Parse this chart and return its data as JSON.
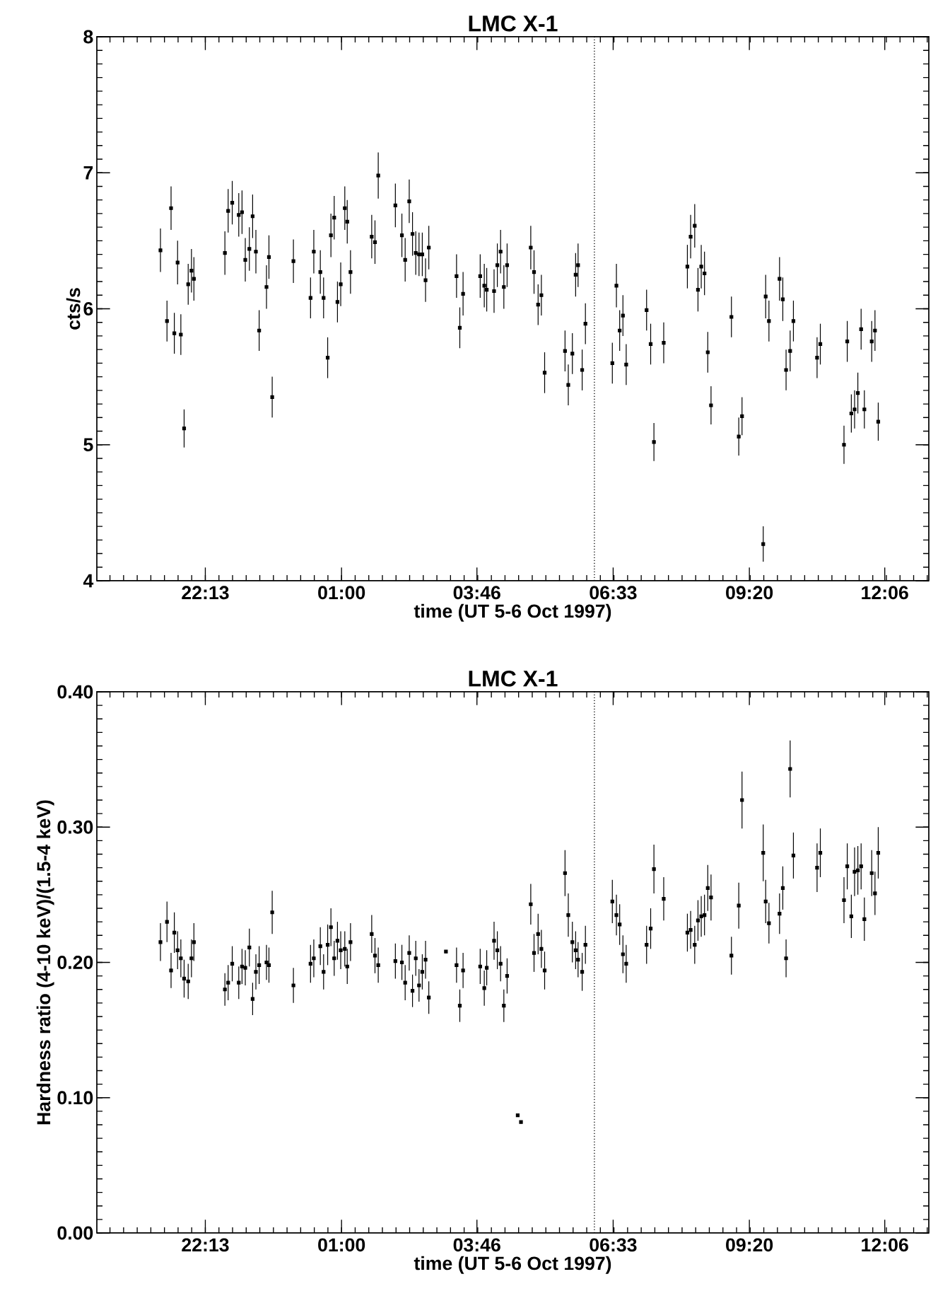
{
  "chart_data": [
    {
      "type": "scatter",
      "title": "LMC X-1",
      "xlabel": "time (UT 5-6 Oct 1997)",
      "ylabel": "cts/s",
      "color": "#000000",
      "marker": "square",
      "xlim": [
        "1997-10-05T20:00",
        "1997-10-06T13:00"
      ],
      "ylim": [
        4,
        8
      ],
      "xticks": [
        {
          "value": "1997-10-05T22:13",
          "label": "22:13"
        },
        {
          "value": "1997-10-06T01:00",
          "label": "01:00"
        },
        {
          "value": "1997-10-06T03:46",
          "label": "03:46"
        },
        {
          "value": "1997-10-06T06:33",
          "label": "06:33"
        },
        {
          "value": "1997-10-06T09:20",
          "label": "09:20"
        },
        {
          "value": "1997-10-06T12:06",
          "label": "12:06"
        }
      ],
      "yticks": [
        4,
        5,
        6,
        7,
        8
      ],
      "ref_lines": [
        {
          "axis": "x",
          "value": "1997-10-06T06:10",
          "line_style": "dotted"
        }
      ],
      "x": [
        "1997-10-05T21:18",
        "1997-10-05T21:26",
        "1997-10-05T21:31",
        "1997-10-05T21:35",
        "1997-10-05T21:39",
        "1997-10-05T21:43",
        "1997-10-05T21:47",
        "1997-10-05T21:52",
        "1997-10-05T21:56",
        "1997-10-05T21:59",
        "1997-10-05T22:37",
        "1997-10-05T22:41",
        "1997-10-05T22:46",
        "1997-10-05T22:54",
        "1997-10-05T22:58",
        "1997-10-05T23:02",
        "1997-10-05T23:07",
        "1997-10-05T23:11",
        "1997-10-05T23:15",
        "1997-10-05T23:19",
        "1997-10-05T23:28",
        "1997-10-05T23:31",
        "1997-10-05T23:35",
        "1997-10-06T00:01",
        "1997-10-06T00:22",
        "1997-10-06T00:26",
        "1997-10-06T00:34",
        "1997-10-06T00:38",
        "1997-10-06T00:43",
        "1997-10-06T00:47",
        "1997-10-06T00:51",
        "1997-10-06T00:55",
        "1997-10-06T00:59",
        "1997-10-06T01:04",
        "1997-10-06T01:07",
        "1997-10-06T01:11",
        "1997-10-06T01:37",
        "1997-10-06T01:41",
        "1997-10-06T01:45",
        "1997-10-06T02:06",
        "1997-10-06T02:14",
        "1997-10-06T02:18",
        "1997-10-06T02:23",
        "1997-10-06T02:27",
        "1997-10-06T02:31",
        "1997-10-06T02:35",
        "1997-10-06T02:39",
        "1997-10-06T02:43",
        "1997-10-06T02:47",
        "1997-10-06T03:21",
        "1997-10-06T03:25",
        "1997-10-06T03:29",
        "1997-10-06T03:50",
        "1997-10-06T03:55",
        "1997-10-06T03:58",
        "1997-10-06T04:07",
        "1997-10-06T04:11",
        "1997-10-06T04:15",
        "1997-10-06T04:19",
        "1997-10-06T04:23",
        "1997-10-06T04:52",
        "1997-10-06T04:56",
        "1997-10-06T05:01",
        "1997-10-06T05:05",
        "1997-10-06T05:09",
        "1997-10-06T05:34",
        "1997-10-06T05:38",
        "1997-10-06T05:43",
        "1997-10-06T05:47",
        "1997-10-06T05:50",
        "1997-10-06T05:55",
        "1997-10-06T05:59",
        "1997-10-06T06:32",
        "1997-10-06T06:37",
        "1997-10-06T06:41",
        "1997-10-06T06:45",
        "1997-10-06T06:49",
        "1997-10-06T07:14",
        "1997-10-06T07:19",
        "1997-10-06T07:23",
        "1997-10-06T07:35",
        "1997-10-06T08:04",
        "1997-10-06T08:08",
        "1997-10-06T08:13",
        "1997-10-06T08:17",
        "1997-10-06T08:21",
        "1997-10-06T08:25",
        "1997-10-06T08:29",
        "1997-10-06T08:33",
        "1997-10-06T08:58",
        "1997-10-06T09:07",
        "1997-10-06T09:11",
        "1997-10-06T09:37",
        "1997-10-06T09:40",
        "1997-10-06T09:44",
        "1997-10-06T09:57",
        "1997-10-06T10:01",
        "1997-10-06T10:05",
        "1997-10-06T10:10",
        "1997-10-06T10:14",
        "1997-10-06T10:43",
        "1997-10-06T10:47",
        "1997-10-06T11:16",
        "1997-10-06T11:20",
        "1997-10-06T11:25",
        "1997-10-06T11:29",
        "1997-10-06T11:33",
        "1997-10-06T11:37",
        "1997-10-06T11:41",
        "1997-10-06T11:50",
        "1997-10-06T11:54",
        "1997-10-06T11:58"
      ],
      "values": [
        6.43,
        5.91,
        6.74,
        5.82,
        6.34,
        5.81,
        5.12,
        6.18,
        6.28,
        6.22,
        6.41,
        6.72,
        6.78,
        6.69,
        6.71,
        6.36,
        6.44,
        6.68,
        6.42,
        5.84,
        6.16,
        6.38,
        5.35,
        6.35,
        6.08,
        6.42,
        6.27,
        6.08,
        5.64,
        6.54,
        6.67,
        6.05,
        6.18,
        6.74,
        6.64,
        6.27,
        6.53,
        6.49,
        6.98,
        6.76,
        6.54,
        6.36,
        6.79,
        6.55,
        6.41,
        6.4,
        6.4,
        6.21,
        6.45,
        6.24,
        5.86,
        6.11,
        6.24,
        6.17,
        6.14,
        6.13,
        6.32,
        6.42,
        6.16,
        6.32,
        6.45,
        6.27,
        6.03,
        6.1,
        5.53,
        5.69,
        5.44,
        5.67,
        6.25,
        6.32,
        5.55,
        5.89,
        5.6,
        6.17,
        5.84,
        5.95,
        5.59,
        5.99,
        5.74,
        5.02,
        5.75,
        6.31,
        6.53,
        6.61,
        6.14,
        6.31,
        6.26,
        5.68,
        5.29,
        5.94,
        5.06,
        5.21,
        4.27,
        6.09,
        5.91,
        6.22,
        6.07,
        5.55,
        5.69,
        5.91,
        5.64,
        5.74,
        5.0,
        5.76,
        5.23,
        5.26,
        5.38,
        5.85,
        5.26,
        5.76,
        5.84,
        5.17
      ],
      "errors": [
        0.16,
        0.15,
        0.16,
        0.15,
        0.16,
        0.15,
        0.14,
        0.15,
        0.16,
        0.16,
        0.16,
        0.16,
        0.16,
        0.16,
        0.16,
        0.16,
        0.16,
        0.16,
        0.16,
        0.15,
        0.16,
        0.16,
        0.15,
        0.16,
        0.15,
        0.16,
        0.16,
        0.15,
        0.15,
        0.16,
        0.16,
        0.15,
        0.16,
        0.16,
        0.16,
        0.16,
        0.16,
        0.16,
        0.17,
        0.16,
        0.16,
        0.16,
        0.16,
        0.16,
        0.16,
        0.16,
        0.16,
        0.16,
        0.16,
        0.16,
        0.15,
        0.16,
        0.16,
        0.16,
        0.16,
        0.16,
        0.16,
        0.16,
        0.16,
        0.16,
        0.16,
        0.16,
        0.15,
        0.15,
        0.15,
        0.15,
        0.15,
        0.15,
        0.16,
        0.16,
        0.15,
        0.15,
        0.15,
        0.16,
        0.15,
        0.15,
        0.15,
        0.15,
        0.15,
        0.14,
        0.15,
        0.16,
        0.16,
        0.16,
        0.16,
        0.16,
        0.16,
        0.15,
        0.14,
        0.15,
        0.14,
        0.14,
        0.13,
        0.16,
        0.15,
        0.16,
        0.16,
        0.15,
        0.15,
        0.15,
        0.15,
        0.15,
        0.14,
        0.15,
        0.14,
        0.14,
        0.15,
        0.15,
        0.14,
        0.15,
        0.15,
        0.14
      ]
    },
    {
      "type": "scatter",
      "title": "LMC X-1",
      "xlabel": "time (UT 5-6 Oct 1997)",
      "ylabel": "Hardness ratio (4-10 keV)/(1.5-4 keV)",
      "color": "#000000",
      "marker": "square",
      "xlim": [
        "1997-10-05T20:00",
        "1997-10-06T13:00"
      ],
      "ylim": [
        0,
        0.4
      ],
      "xticks": [
        {
          "value": "1997-10-05T22:13",
          "label": "22:13"
        },
        {
          "value": "1997-10-06T01:00",
          "label": "01:00"
        },
        {
          "value": "1997-10-06T03:46",
          "label": "03:46"
        },
        {
          "value": "1997-10-06T06:33",
          "label": "06:33"
        },
        {
          "value": "1997-10-06T09:20",
          "label": "09:20"
        },
        {
          "value": "1997-10-06T12:06",
          "label": "12:06"
        }
      ],
      "yticks": [
        {
          "value": 0,
          "label": "0.00"
        },
        {
          "value": 0.1,
          "label": "0.10"
        },
        {
          "value": 0.2,
          "label": "0.20"
        },
        {
          "value": 0.3,
          "label": "0.30"
        },
        {
          "value": 0.4,
          "label": "0.40"
        }
      ],
      "ref_lines": [
        {
          "axis": "x",
          "value": "1997-10-06T06:10",
          "line_style": "dotted"
        }
      ],
      "x": [
        "1997-10-05T21:18",
        "1997-10-05T21:26",
        "1997-10-05T21:31",
        "1997-10-05T21:35",
        "1997-10-05T21:39",
        "1997-10-05T21:43",
        "1997-10-05T21:47",
        "1997-10-05T21:52",
        "1997-10-05T21:56",
        "1997-10-05T21:59",
        "1997-10-05T22:37",
        "1997-10-05T22:41",
        "1997-10-05T22:46",
        "1997-10-05T22:54",
        "1997-10-05T22:58",
        "1997-10-05T23:02",
        "1997-10-05T23:07",
        "1997-10-05T23:11",
        "1997-10-05T23:15",
        "1997-10-05T23:19",
        "1997-10-05T23:28",
        "1997-10-05T23:31",
        "1997-10-05T23:35",
        "1997-10-06T00:01",
        "1997-10-06T00:22",
        "1997-10-06T00:26",
        "1997-10-06T00:34",
        "1997-10-06T00:38",
        "1997-10-06T00:43",
        "1997-10-06T00:47",
        "1997-10-06T00:51",
        "1997-10-06T00:55",
        "1997-10-06T00:59",
        "1997-10-06T01:04",
        "1997-10-06T01:07",
        "1997-10-06T01:11",
        "1997-10-06T01:37",
        "1997-10-06T01:41",
        "1997-10-06T01:45",
        "1997-10-06T02:06",
        "1997-10-06T02:14",
        "1997-10-06T02:18",
        "1997-10-06T02:23",
        "1997-10-06T02:27",
        "1997-10-06T02:31",
        "1997-10-06T02:35",
        "1997-10-06T02:39",
        "1997-10-06T02:43",
        "1997-10-06T02:47",
        "1997-10-06T03:08",
        "1997-10-06T03:21",
        "1997-10-06T03:25",
        "1997-10-06T03:29",
        "1997-10-06T03:50",
        "1997-10-06T03:55",
        "1997-10-06T03:58",
        "1997-10-06T04:07",
        "1997-10-06T04:11",
        "1997-10-06T04:15",
        "1997-10-06T04:19",
        "1997-10-06T04:23",
        "1997-10-06T04:36",
        "1997-10-06T04:40",
        "1997-10-06T04:52",
        "1997-10-06T04:56",
        "1997-10-06T05:01",
        "1997-10-06T05:05",
        "1997-10-06T05:09",
        "1997-10-06T05:34",
        "1997-10-06T05:38",
        "1997-10-06T05:43",
        "1997-10-06T05:47",
        "1997-10-06T05:50",
        "1997-10-06T05:55",
        "1997-10-06T05:59",
        "1997-10-06T06:32",
        "1997-10-06T06:37",
        "1997-10-06T06:41",
        "1997-10-06T06:45",
        "1997-10-06T06:49",
        "1997-10-06T07:14",
        "1997-10-06T07:19",
        "1997-10-06T07:23",
        "1997-10-06T07:35",
        "1997-10-06T08:04",
        "1997-10-06T08:08",
        "1997-10-06T08:13",
        "1997-10-06T08:17",
        "1997-10-06T08:21",
        "1997-10-06T08:25",
        "1997-10-06T08:29",
        "1997-10-06T08:33",
        "1997-10-06T08:58",
        "1997-10-06T09:07",
        "1997-10-06T09:11",
        "1997-10-06T09:37",
        "1997-10-06T09:40",
        "1997-10-06T09:44",
        "1997-10-06T09:57",
        "1997-10-06T10:01",
        "1997-10-06T10:05",
        "1997-10-06T10:10",
        "1997-10-06T10:14",
        "1997-10-06T10:43",
        "1997-10-06T10:47",
        "1997-10-06T11:16",
        "1997-10-06T11:20",
        "1997-10-06T11:25",
        "1997-10-06T11:29",
        "1997-10-06T11:33",
        "1997-10-06T11:37",
        "1997-10-06T11:41",
        "1997-10-06T11:50",
        "1997-10-06T11:54",
        "1997-10-06T11:58"
      ],
      "values": [
        0.215,
        0.23,
        0.194,
        0.222,
        0.209,
        0.203,
        0.188,
        0.186,
        0.203,
        0.215,
        0.18,
        0.185,
        0.199,
        0.185,
        0.197,
        0.196,
        0.211,
        0.173,
        0.193,
        0.198,
        0.2,
        0.198,
        0.237,
        0.183,
        0.199,
        0.203,
        0.212,
        0.193,
        0.213,
        0.226,
        0.203,
        0.216,
        0.209,
        0.21,
        0.197,
        0.215,
        0.221,
        0.205,
        0.198,
        0.201,
        0.2,
        0.185,
        0.207,
        0.179,
        0.203,
        0.183,
        0.193,
        0.202,
        0.174,
        0.208,
        0.198,
        0.168,
        0.194,
        0.197,
        0.181,
        0.196,
        0.216,
        0.209,
        0.199,
        0.168,
        0.19,
        0.087,
        0.082,
        0.243,
        0.207,
        0.221,
        0.21,
        0.194,
        0.266,
        0.235,
        0.215,
        0.209,
        0.202,
        0.193,
        0.213,
        0.245,
        0.235,
        0.228,
        0.206,
        0.199,
        0.213,
        0.225,
        0.269,
        0.247,
        0.222,
        0.224,
        0.213,
        0.231,
        0.234,
        0.235,
        0.255,
        0.248,
        0.205,
        0.242,
        0.32,
        0.281,
        0.245,
        0.229,
        0.236,
        0.255,
        0.203,
        0.343,
        0.279,
        0.27,
        0.281,
        0.246,
        0.271,
        0.234,
        0.267,
        0.268,
        0.271,
        0.232,
        0.266,
        0.251,
        0.281
      ],
      "errors": [
        0.014,
        0.015,
        0.013,
        0.015,
        0.014,
        0.014,
        0.014,
        0.013,
        0.014,
        0.014,
        0.012,
        0.013,
        0.013,
        0.012,
        0.013,
        0.013,
        0.014,
        0.012,
        0.013,
        0.014,
        0.013,
        0.013,
        0.016,
        0.013,
        0.014,
        0.014,
        0.014,
        0.013,
        0.015,
        0.014,
        0.013,
        0.014,
        0.014,
        0.013,
        0.013,
        0.014,
        0.014,
        0.013,
        0.013,
        0.013,
        0.013,
        0.013,
        0.013,
        0.012,
        0.013,
        0.012,
        0.013,
        0.014,
        0.012,
        null,
        0.013,
        0.012,
        0.013,
        0.013,
        0.013,
        0.013,
        0.014,
        0.014,
        0.013,
        0.012,
        0.013,
        null,
        null,
        0.015,
        0.014,
        0.015,
        0.014,
        0.014,
        0.017,
        0.016,
        0.015,
        0.014,
        0.013,
        0.014,
        0.014,
        0.016,
        0.015,
        0.015,
        0.014,
        0.014,
        0.014,
        0.015,
        0.018,
        0.016,
        0.014,
        0.014,
        0.014,
        0.015,
        0.015,
        0.015,
        0.017,
        0.017,
        0.014,
        0.017,
        0.021,
        0.021,
        0.016,
        0.015,
        0.015,
        0.016,
        0.014,
        0.021,
        0.017,
        0.018,
        0.018,
        0.017,
        0.017,
        0.016,
        0.018,
        0.018,
        0.017,
        0.016,
        0.017,
        0.016,
        0.019
      ]
    }
  ]
}
